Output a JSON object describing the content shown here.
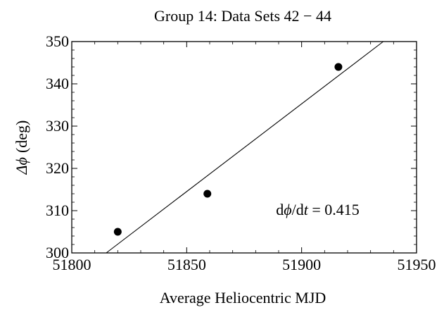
{
  "chart_data": {
    "type": "scatter",
    "title": "Group 14: Data Sets 42 − 44",
    "xlabel": "Average Heliocentric MJD",
    "ylabel_symbol": "Δϕ",
    "ylabel_unit": "(deg)",
    "xlim": [
      51800,
      51950
    ],
    "ylim": [
      300,
      350
    ],
    "x_ticks": [
      51800,
      51850,
      51900,
      51950
    ],
    "y_ticks": [
      300,
      310,
      320,
      330,
      340,
      350
    ],
    "grid": false,
    "points": [
      {
        "x": 51820,
        "y": 305
      },
      {
        "x": 51859,
        "y": 314
      },
      {
        "x": 51916,
        "y": 344
      }
    ],
    "fit_line": {
      "slope": 0.415,
      "x1": 51815,
      "y1": 300,
      "x2": 51935.5,
      "y2": 350
    },
    "annotation": {
      "text_prefix": "d",
      "text_phi": "ϕ",
      "text_mid": "/d",
      "text_t": "t",
      "text_suffix": " = 0.415",
      "x": 51907,
      "y": 309
    }
  }
}
